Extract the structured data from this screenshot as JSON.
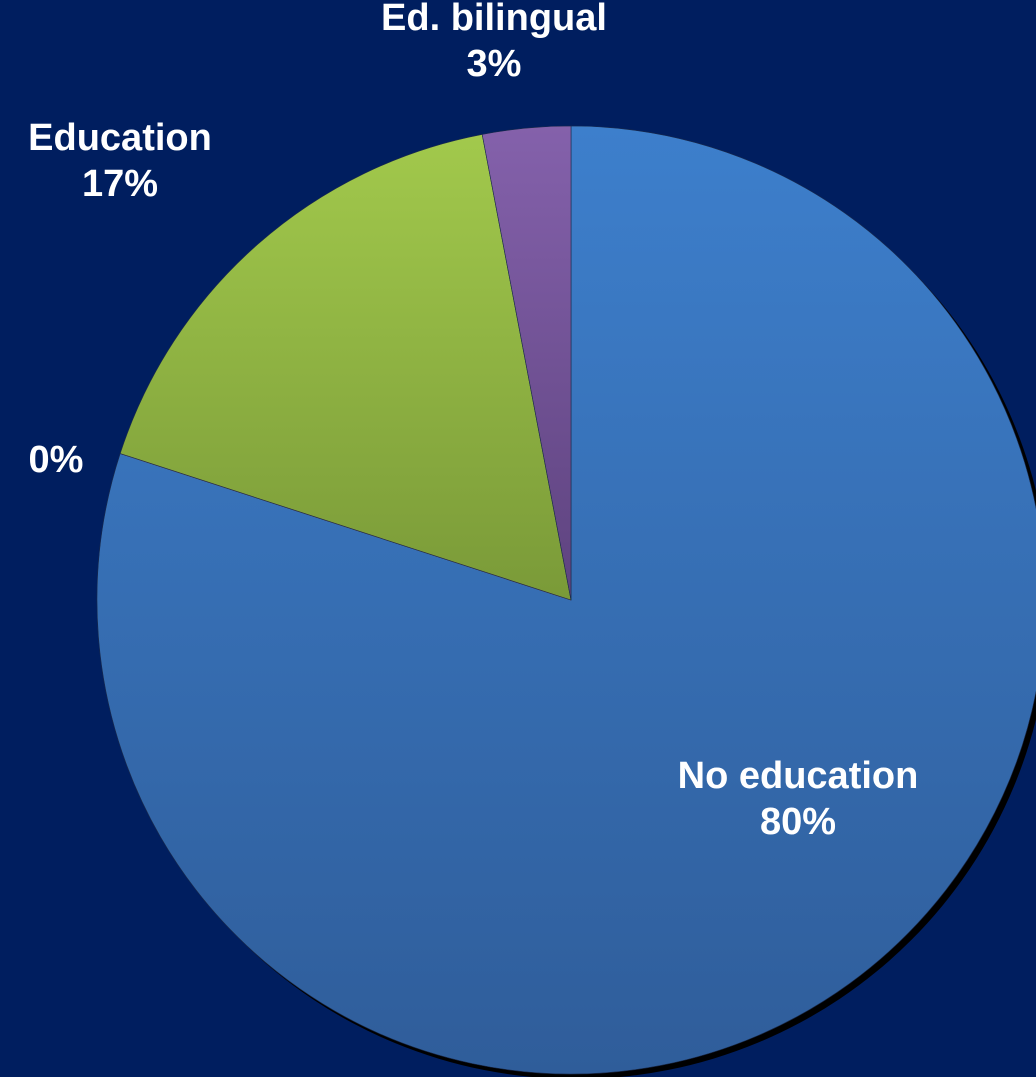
{
  "chart_data": {
    "type": "pie",
    "background_color": "#001e5f",
    "slices": [
      {
        "category": "No education",
        "value": 80,
        "label": "80%",
        "color_top": "#3d7fcc",
        "color_bottom": "#2f5d9a"
      },
      {
        "category": "",
        "value": 0,
        "label": "0%",
        "color_top": "#9b3b3b",
        "color_bottom": "#7a2e2e"
      },
      {
        "category": "Education",
        "value": 17,
        "label": "17%",
        "color_top": "#a2c94c",
        "color_bottom": "#7a9a38"
      },
      {
        "category": "Ed. bilingual",
        "value": 3,
        "label": "3%",
        "color_top": "#8461ab",
        "color_bottom": "#5e437f"
      }
    ],
    "start_angle_deg": 0,
    "direction": "clockwise",
    "label_color": "#ffffff",
    "legend": "none"
  }
}
